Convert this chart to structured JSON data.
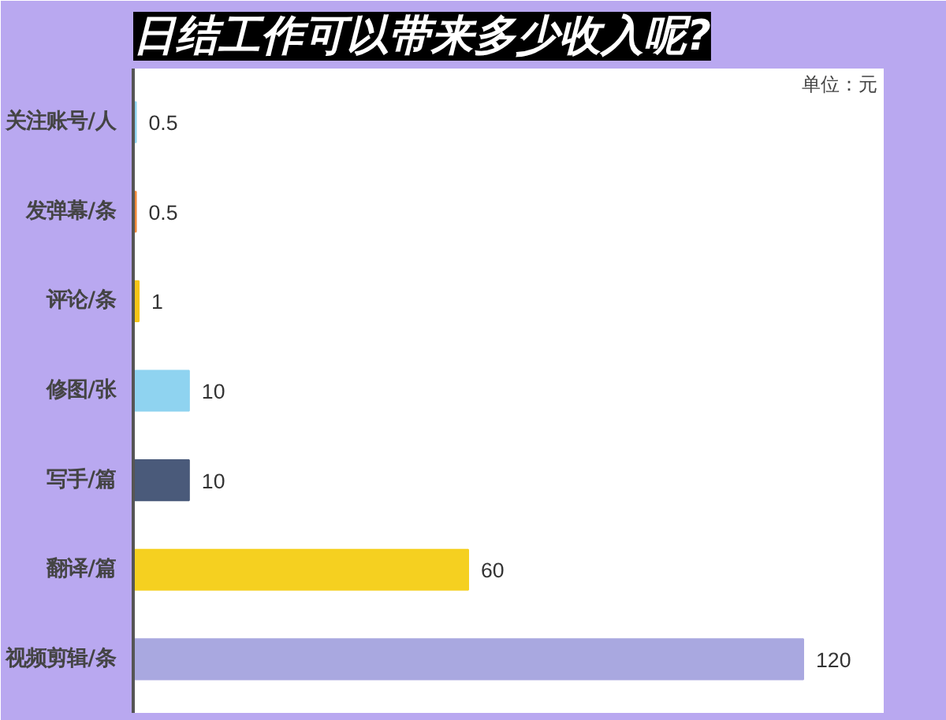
{
  "chart_data": {
    "type": "bar",
    "orientation": "horizontal",
    "title": "日结工作可以带来多少收入呢?",
    "annotations": [
      "单位：元"
    ],
    "categories": [
      "关注账号/人",
      "发弹幕/条",
      "评论/条",
      "修图/张",
      "写手/篇",
      "翻译/篇",
      "视频剪辑/条"
    ],
    "values": [
      0.5,
      0.5,
      1,
      10,
      10,
      60,
      120
    ],
    "colors": [
      "#8fd3f0",
      "#f0883a",
      "#f5c518",
      "#8fd3f0",
      "#4a5a7a",
      "#f5d020",
      "#a9a8e0"
    ],
    "data_labels": true,
    "tick_labels": "y",
    "grid": false
  }
}
